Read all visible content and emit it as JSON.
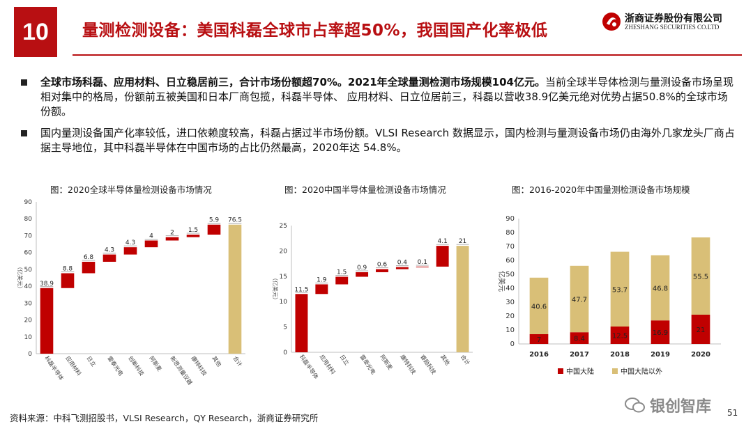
{
  "header": {
    "number": "10",
    "title": "量测检测设备：美国科磊全球市占率超50%，我国国产化率极低",
    "logo_cn": "浙商证券股份有限公司",
    "logo_en": "ZHESHANG SECURITIES CO.LTD"
  },
  "bullets": [
    {
      "bold": "全球市场科磊、应用材料、日立稳居前三，合计市场份额超70%。2021年全球量测检测市场规模104亿元。",
      "text": "当前全球半导体检测与量测设备市场呈现相对集中的格局，份额前五被美国和日本厂商包揽，科磊半导体、 应用材料、日立位居前三，科磊以营收38.9亿美元绝对优势占据50.8%的全球市场份额。"
    },
    {
      "bold": "",
      "text": "国内量测设备国产化率较低，进口依赖度较高，科磊占据过半市场份额。VLSI Research 数据显示，国内检测与量测设备市场仍由海外几家龙头厂商占据主导地位，其中科磊半导体在中国市场的占比仍然最高，2020年达 54.8%。"
    }
  ],
  "chart_data": [
    {
      "type": "bar",
      "subtype": "waterfall",
      "title": "图：2020全球半导体量检测设备市场情况",
      "ylabel": "（亿美元）",
      "ylim": [
        0,
        90
      ],
      "yticks": [
        "0",
        "10",
        "20",
        "30",
        "40",
        "50",
        "60",
        "70",
        "80",
        "90"
      ],
      "categories": [
        "科磊半导体",
        "应用材料",
        "日立",
        "雷泰光电",
        "创新科技",
        "阿斯麦",
        "新思测量仪器",
        "康特科技",
        "其他",
        "合计"
      ],
      "values": [
        38.9,
        8.8,
        6.8,
        4.3,
        4.3,
        4,
        2,
        1.5,
        5.9,
        76.5
      ],
      "labels": [
        "38.9",
        "8.8",
        "6.8",
        "4.3",
        "4.3",
        "4",
        "2",
        "1.5",
        "5.9",
        "76.5"
      ],
      "total_index": 9,
      "colors": {
        "bar": "#c00000",
        "total": "#d9bf77"
      }
    },
    {
      "type": "bar",
      "subtype": "waterfall",
      "title": "图：2020中国半导体量检测设备市场情况",
      "ylabel": "（亿美元）",
      "ylim": [
        0,
        25
      ],
      "yticks": [
        "0",
        "5",
        "10",
        "15",
        "20",
        "25"
      ],
      "categories": [
        "科磊半导体",
        "应用材料",
        "日立",
        "雷泰光电",
        "阿斯麦",
        "康特科技",
        "睿励科技",
        "其他",
        "合计"
      ],
      "values": [
        11.5,
        1.9,
        1.5,
        0.9,
        0.6,
        0.4,
        0.1,
        4.1,
        21
      ],
      "labels": [
        "11.5",
        "1.9",
        "1.5",
        "0.9",
        "0.6",
        "0.4",
        "0.1",
        "4.1",
        "21"
      ],
      "total_index": 8,
      "colors": {
        "bar": "#c00000",
        "total": "#d9bf77"
      }
    },
    {
      "type": "bar",
      "subtype": "stacked",
      "title": "图：2016-2020年中国量测检测设备市场规模",
      "ylabel": "亿美元",
      "ylim": [
        0,
        90
      ],
      "yticks": [
        "0",
        "10",
        "20",
        "30",
        "40",
        "50",
        "60",
        "70",
        "80",
        "90"
      ],
      "categories": [
        "2016",
        "2017",
        "2018",
        "2019",
        "2020"
      ],
      "series": [
        {
          "name": "中国大陆",
          "values": [
            7,
            8.4,
            12.5,
            16.9,
            21
          ],
          "labels": [
            "7",
            "8.4",
            "12.5",
            "16.9",
            "21"
          ],
          "color": "#c00000"
        },
        {
          "name": "中国大陆以外",
          "values": [
            40.6,
            47.7,
            53.7,
            46.8,
            55.5
          ],
          "labels": [
            "40.6",
            "47.7",
            "53.7",
            "46.8",
            "55.5"
          ],
          "color": "#d9bf77"
        }
      ]
    }
  ],
  "footer": {
    "source": "资料来源：中科飞测招股书，VLSI Research，QY Research，浙商证券研究所",
    "watermark": "银创智库",
    "page": "51"
  }
}
